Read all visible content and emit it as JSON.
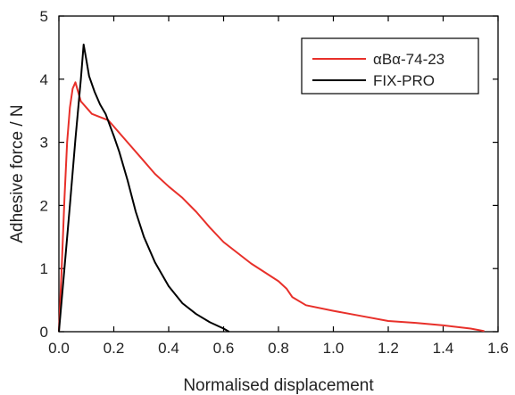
{
  "chart_data": {
    "type": "line",
    "xlabel": "Normalised displacement",
    "ylabel": "Adhesive force / N",
    "xlim": [
      0,
      1.6
    ],
    "ylim": [
      0,
      5
    ],
    "x_ticks": [
      0.0,
      0.2,
      0.4,
      0.6,
      0.8,
      1.0,
      1.2,
      1.4,
      1.6
    ],
    "x_tick_labels": [
      "0.0",
      "0.2",
      "0.4",
      "0.6",
      "0.8",
      "1.0",
      "1.2",
      "1.4",
      "1.6"
    ],
    "y_ticks": [
      0,
      1,
      2,
      3,
      4,
      5
    ],
    "y_tick_labels": [
      "0",
      "1",
      "2",
      "3",
      "4",
      "5"
    ],
    "legend_position": "top-right",
    "series": [
      {
        "name": "αBα-74-23",
        "color": "#e8302a",
        "points": [
          [
            0.0,
            0.0
          ],
          [
            0.01,
            1.0
          ],
          [
            0.02,
            2.1
          ],
          [
            0.03,
            3.0
          ],
          [
            0.04,
            3.55
          ],
          [
            0.05,
            3.85
          ],
          [
            0.06,
            3.95
          ],
          [
            0.07,
            3.8
          ],
          [
            0.08,
            3.65
          ],
          [
            0.1,
            3.55
          ],
          [
            0.12,
            3.45
          ],
          [
            0.15,
            3.4
          ],
          [
            0.18,
            3.35
          ],
          [
            0.2,
            3.25
          ],
          [
            0.25,
            3.0
          ],
          [
            0.3,
            2.75
          ],
          [
            0.35,
            2.5
          ],
          [
            0.4,
            2.3
          ],
          [
            0.45,
            2.12
          ],
          [
            0.5,
            1.9
          ],
          [
            0.55,
            1.65
          ],
          [
            0.6,
            1.42
          ],
          [
            0.65,
            1.25
          ],
          [
            0.7,
            1.08
          ],
          [
            0.75,
            0.94
          ],
          [
            0.8,
            0.8
          ],
          [
            0.83,
            0.68
          ],
          [
            0.85,
            0.55
          ],
          [
            0.9,
            0.42
          ],
          [
            1.0,
            0.33
          ],
          [
            1.1,
            0.25
          ],
          [
            1.2,
            0.17
          ],
          [
            1.3,
            0.14
          ],
          [
            1.4,
            0.1
          ],
          [
            1.5,
            0.05
          ],
          [
            1.55,
            0.01
          ]
        ]
      },
      {
        "name": "FIX-PRO",
        "color": "#000000",
        "points": [
          [
            0.0,
            0.0
          ],
          [
            0.02,
            1.0
          ],
          [
            0.04,
            2.0
          ],
          [
            0.06,
            3.05
          ],
          [
            0.08,
            4.0
          ],
          [
            0.09,
            4.55
          ],
          [
            0.1,
            4.3
          ],
          [
            0.11,
            4.05
          ],
          [
            0.13,
            3.8
          ],
          [
            0.15,
            3.6
          ],
          [
            0.17,
            3.45
          ],
          [
            0.2,
            3.1
          ],
          [
            0.22,
            2.85
          ],
          [
            0.25,
            2.4
          ],
          [
            0.28,
            1.9
          ],
          [
            0.31,
            1.5
          ],
          [
            0.35,
            1.1
          ],
          [
            0.4,
            0.72
          ],
          [
            0.45,
            0.45
          ],
          [
            0.5,
            0.28
          ],
          [
            0.55,
            0.15
          ],
          [
            0.6,
            0.05
          ],
          [
            0.62,
            0.0
          ]
        ]
      }
    ]
  }
}
